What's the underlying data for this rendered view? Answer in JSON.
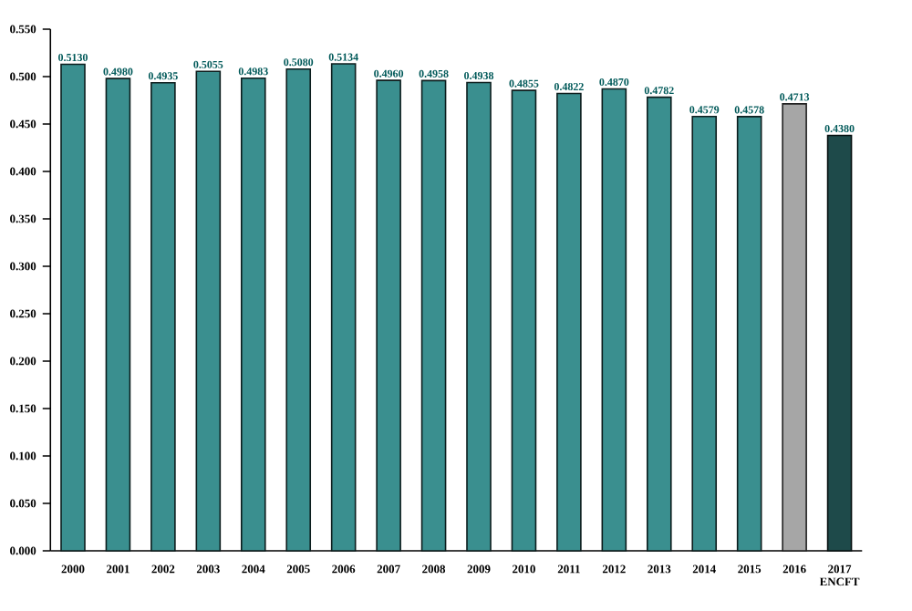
{
  "chart_data": {
    "type": "bar",
    "categories": [
      "2000",
      "2001",
      "2002",
      "2003",
      "2004",
      "2005",
      "2006",
      "2007",
      "2008",
      "2009",
      "2010",
      "2011",
      "2012",
      "2013",
      "2014",
      "2015",
      "2016",
      "2017 ENCFT"
    ],
    "values": [
      0.513,
      0.498,
      0.4935,
      0.5055,
      0.4983,
      0.508,
      0.5134,
      0.496,
      0.4958,
      0.4938,
      0.4855,
      0.4822,
      0.487,
      0.4782,
      0.4579,
      0.4578,
      0.4713,
      0.438
    ],
    "value_labels": [
      "0.5130",
      "0.4980",
      "0.4935",
      "0.5055",
      "0.4983",
      "0.5080",
      "0.5134",
      "0.4960",
      "0.4958",
      "0.4938",
      "0.4855",
      "0.4822",
      "0.4870",
      "0.4782",
      "0.4579",
      "0.4578",
      "0.4713",
      "0.4380"
    ],
    "colors": [
      "#3a8f8f",
      "#3a8f8f",
      "#3a8f8f",
      "#3a8f8f",
      "#3a8f8f",
      "#3a8f8f",
      "#3a8f8f",
      "#3a8f8f",
      "#3a8f8f",
      "#3a8f8f",
      "#3a8f8f",
      "#3a8f8f",
      "#3a8f8f",
      "#3a8f8f",
      "#3a8f8f",
      "#3a8f8f",
      "#a6a6a6",
      "#1e4a4a"
    ],
    "ylim": [
      0,
      0.55
    ],
    "yticks": [
      {
        "value": 0,
        "label": "0.000"
      },
      {
        "value": 0.05,
        "label": "0.050"
      },
      {
        "value": 0.1,
        "label": "0.100"
      },
      {
        "value": 0.15,
        "label": "0.150"
      },
      {
        "value": 0.2,
        "label": "0.200"
      },
      {
        "value": 0.25,
        "label": "0.250"
      },
      {
        "value": 0.3,
        "label": "0.300"
      },
      {
        "value": 0.35,
        "label": "0.350"
      },
      {
        "value": 0.4,
        "label": "0.400"
      },
      {
        "value": 0.45,
        "label": "0.450"
      },
      {
        "value": 0.5,
        "label": "0.500"
      },
      {
        "value": 0.55,
        "label": "0.550"
      }
    ],
    "grid": false
  }
}
